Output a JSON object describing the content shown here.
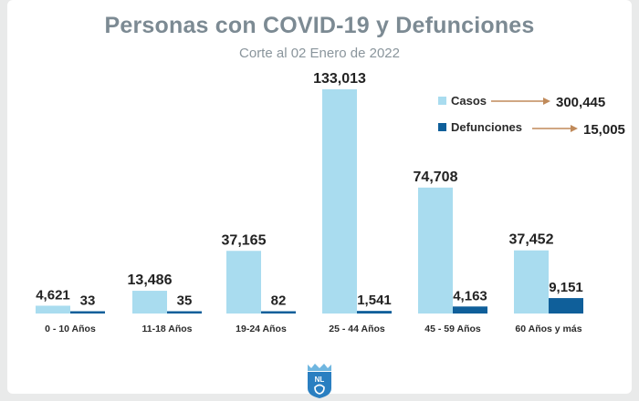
{
  "header": {
    "title": "Personas con COVID-19 y Defunciones",
    "subtitle": "Corte al 02 Enero de 2022"
  },
  "legend": {
    "cases_label": "Casos",
    "cases_total": "300,445",
    "deaths_label": "Defunciones",
    "deaths_total": "15,005"
  },
  "logo": {
    "text": "NL"
  },
  "colors": {
    "cases": "#a9dcef",
    "deaths": "#0f5f9a",
    "arrow": "#c08a5a",
    "baseline": "#b7b7b7"
  },
  "chart_data": {
    "type": "bar",
    "title": "Personas con COVID-19 y Defunciones",
    "subtitle": "Corte al 02 Enero de 2022",
    "categories": [
      "0 - 10 Años",
      "11-18 Años",
      "19-24 Años",
      "25 - 44 Años",
      "45 - 59 Años",
      "60 Años y más"
    ],
    "series": [
      {
        "name": "Casos",
        "values": [
          4621,
          13486,
          37165,
          133013,
          74708,
          37452
        ],
        "labels": [
          "4,621",
          "13,486",
          "37,165",
          "133,013",
          "74,708",
          "37,452"
        ]
      },
      {
        "name": "Defunciones",
        "values": [
          33,
          35,
          82,
          1541,
          4163,
          9151
        ],
        "labels": [
          "33",
          "35",
          "82",
          "1,541",
          "4,163",
          "9,151"
        ]
      }
    ],
    "legend_position": "top-right",
    "grid": false
  }
}
